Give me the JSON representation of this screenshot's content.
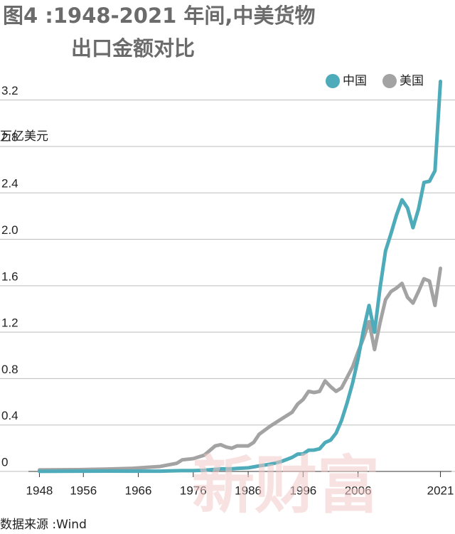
{
  "chart_data": {
    "type": "line",
    "title": [
      "图4 :1948-2021 年间,中美货物",
      "出口金额对比"
    ],
    "y_label": "万亿美元",
    "source": "数据来源 :Wind",
    "watermark": "新财富",
    "x": [
      1948,
      1955,
      1960,
      1965,
      1970,
      1973,
      1974,
      1976,
      1978,
      1980,
      1981,
      1982,
      1983,
      1984,
      1986,
      1987,
      1988,
      1990,
      1992,
      1994,
      1995,
      1996,
      1997,
      1998,
      1999,
      2000,
      2001,
      2002,
      2003,
      2004,
      2005,
      2006,
      2007,
      2008,
      2009,
      2010,
      2011,
      2012,
      2013,
      2014,
      2015,
      2016,
      2017,
      2018,
      2019,
      2020,
      2021
    ],
    "series": [
      {
        "name": "中国",
        "color": "#4eabb9",
        "values": [
          0.001,
          0.002,
          0.003,
          0.002,
          0.002,
          0.006,
          0.007,
          0.007,
          0.01,
          0.018,
          0.022,
          0.022,
          0.022,
          0.026,
          0.031,
          0.039,
          0.048,
          0.062,
          0.085,
          0.121,
          0.149,
          0.151,
          0.183,
          0.184,
          0.195,
          0.249,
          0.27,
          0.33,
          0.44,
          0.59,
          0.76,
          0.97,
          1.22,
          1.43,
          1.2,
          1.58,
          1.9,
          2.05,
          2.21,
          2.34,
          2.27,
          2.1,
          2.26,
          2.49,
          2.5,
          2.59,
          3.36
        ]
      },
      {
        "name": "美国",
        "color": "#a3a3a3",
        "values": [
          0.013,
          0.015,
          0.02,
          0.027,
          0.043,
          0.07,
          0.1,
          0.11,
          0.14,
          0.22,
          0.23,
          0.21,
          0.2,
          0.22,
          0.22,
          0.25,
          0.32,
          0.39,
          0.45,
          0.51,
          0.58,
          0.62,
          0.69,
          0.68,
          0.69,
          0.78,
          0.73,
          0.69,
          0.72,
          0.81,
          0.9,
          1.03,
          1.15,
          1.29,
          1.05,
          1.28,
          1.48,
          1.55,
          1.58,
          1.62,
          1.5,
          1.45,
          1.55,
          1.66,
          1.64,
          1.43,
          1.75
        ]
      }
    ],
    "xlim": [
      1946,
      2023
    ],
    "xticks": [
      1948,
      1956,
      1966,
      1976,
      1986,
      1996,
      2006,
      2021
    ],
    "ylim": [
      0,
      3.4
    ],
    "yticks": [
      0,
      0.4,
      0.8,
      1.2,
      1.6,
      {
        "value": 2,
        "label": "2.0"
      },
      2.4,
      2.8,
      3.2
    ],
    "grid": true,
    "legend": "top-right"
  }
}
